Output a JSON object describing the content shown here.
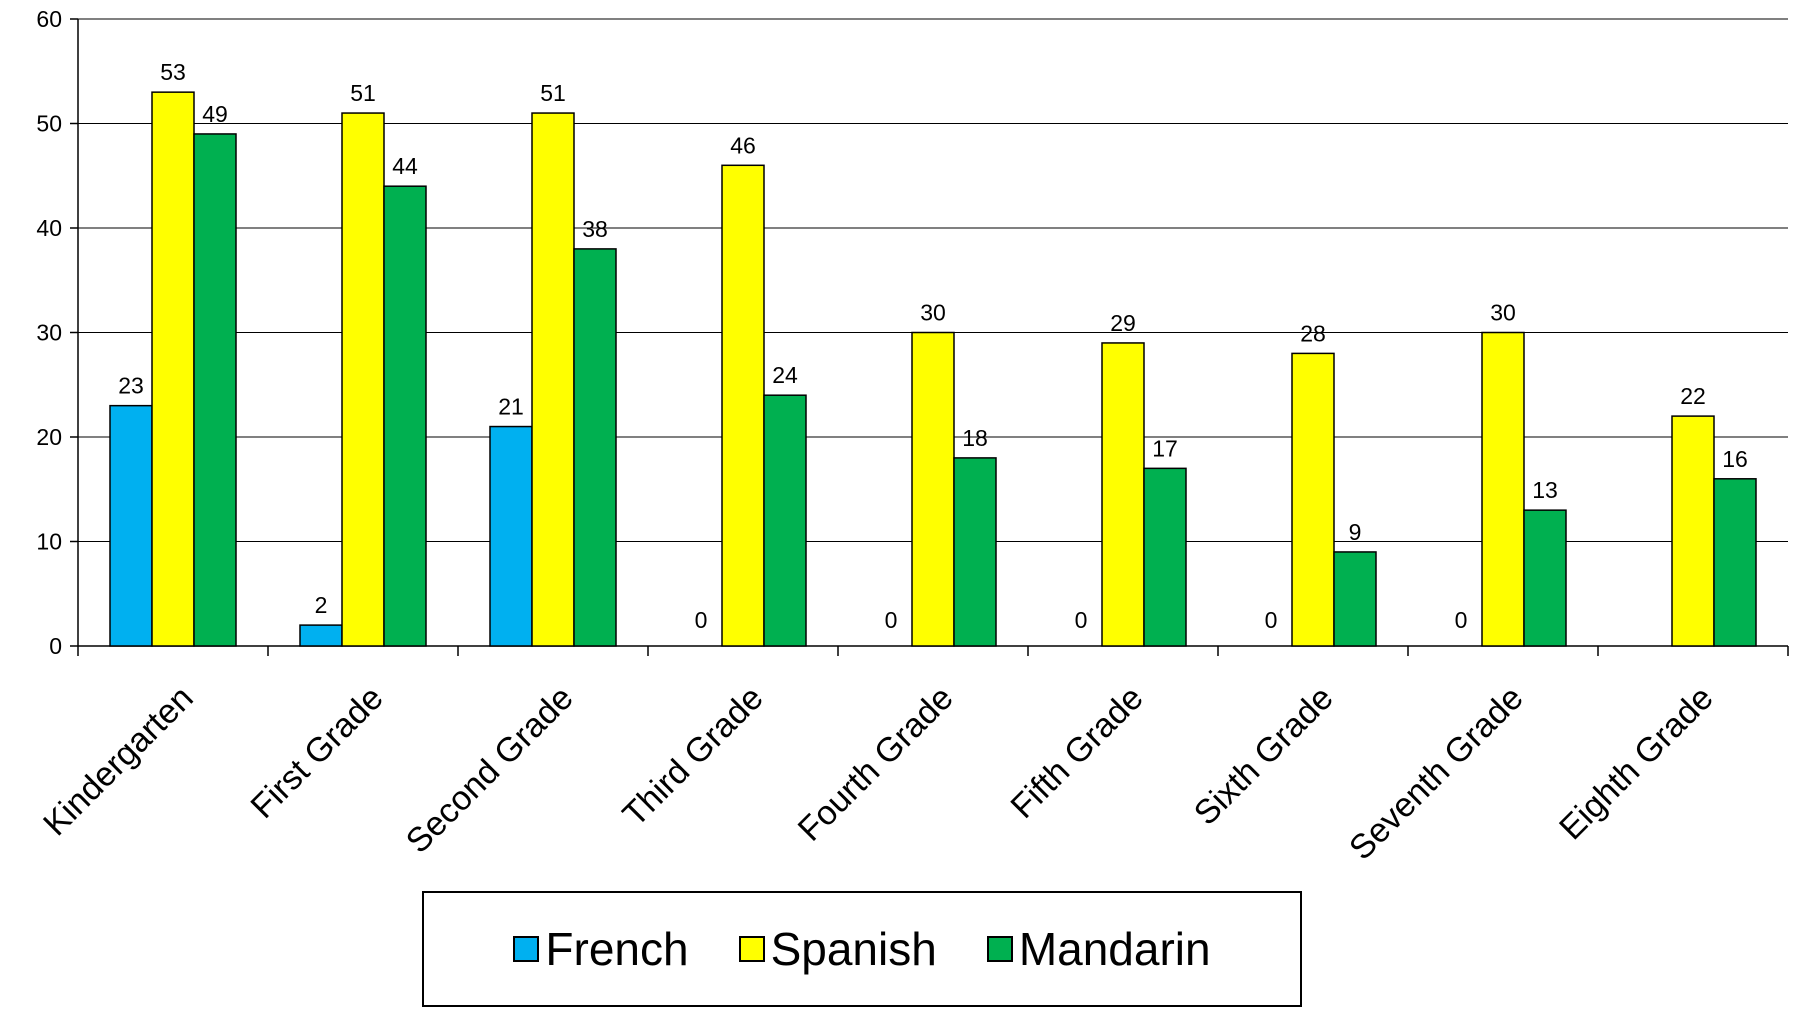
{
  "chart_data": {
    "type": "bar",
    "categories": [
      "Kindergarten",
      "First Grade",
      "Second Grade",
      "Third Grade",
      "Fourth Grade",
      "Fifth Grade",
      "Sixth Grade",
      "Seventh Grade",
      "Eighth Grade"
    ],
    "series": [
      {
        "name": "French",
        "color": "#00b0f0",
        "values": [
          23,
          2,
          21,
          0,
          0,
          0,
          0,
          0,
          null
        ],
        "labels": [
          "23",
          "2",
          "21",
          "0",
          "0",
          "0",
          "0",
          "0",
          ""
        ]
      },
      {
        "name": "Spanish",
        "color": "#ffff00",
        "values": [
          53,
          51,
          51,
          46,
          30,
          29,
          28,
          30,
          22
        ],
        "labels": [
          "53",
          "51",
          "51",
          "46",
          "30",
          "29",
          "28",
          "30",
          "22"
        ]
      },
      {
        "name": "Mandarin",
        "color": "#00b050",
        "values": [
          49,
          44,
          38,
          24,
          18,
          17,
          9,
          13,
          16
        ],
        "labels": [
          "49",
          "44",
          "38",
          "24",
          "18",
          "17",
          "9",
          "13",
          "16"
        ]
      }
    ],
    "ylim": [
      0,
      60
    ],
    "yticks": [
      0,
      10,
      20,
      30,
      40,
      50,
      60
    ],
    "ytick_labels": [
      "0",
      "10",
      "20",
      "30",
      "40",
      "50",
      "60"
    ],
    "grid": true,
    "legend_position": "bottom",
    "title": "",
    "xlabel": "",
    "ylabel": ""
  }
}
